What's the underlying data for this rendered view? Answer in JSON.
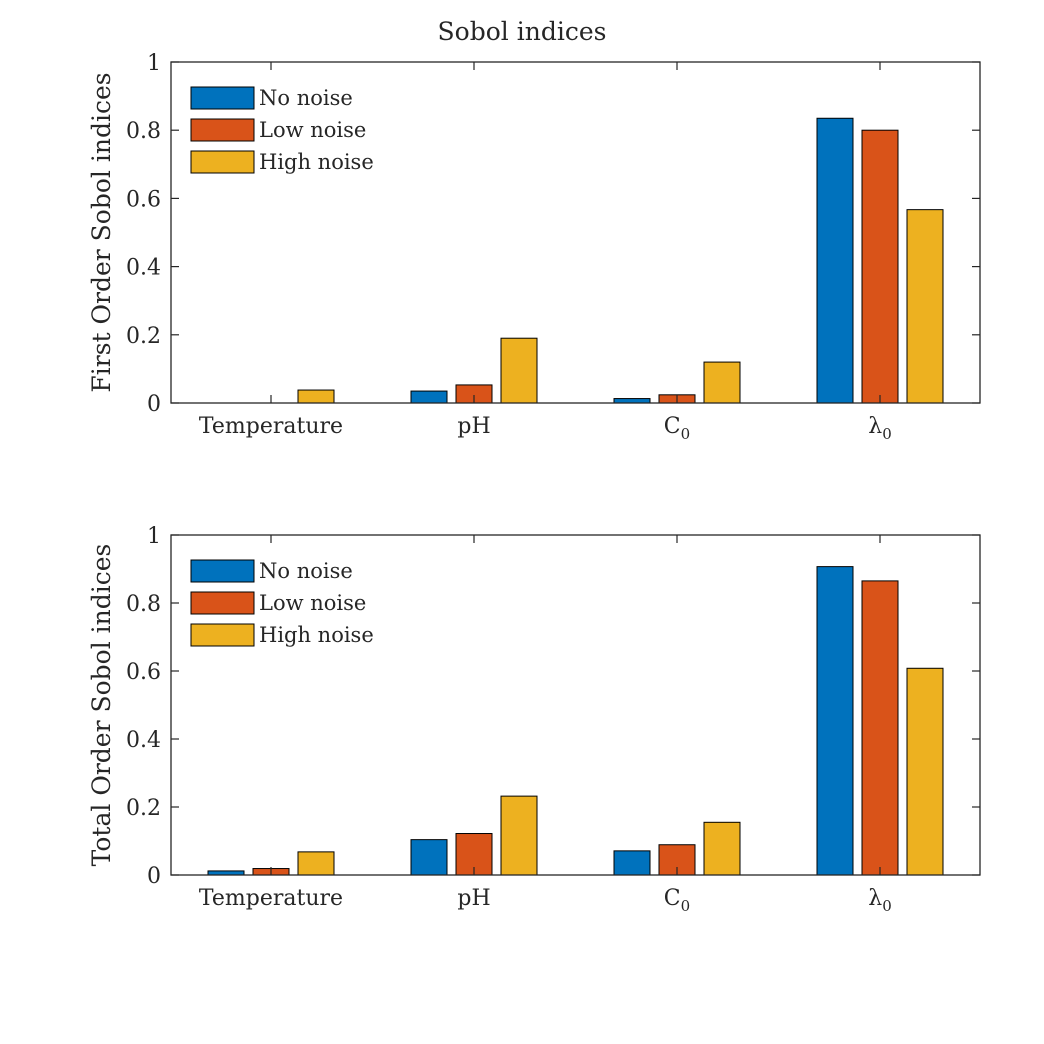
{
  "figure": {
    "title": "Sobol indices"
  },
  "chart_data": [
    {
      "type": "bar",
      "title": "",
      "xlabel": "",
      "ylabel": "First Order Sobol indices",
      "ylim": [
        0,
        1
      ],
      "yticks": [
        "0",
        "0.2",
        "0.4",
        "0.6",
        "0.8",
        "1"
      ],
      "categories": [
        "Temperature",
        "pH",
        "C0",
        "λ0"
      ],
      "series": [
        {
          "name": "No noise",
          "color": "#0072BD",
          "values": [
            0.0,
            0.035,
            0.013,
            0.835
          ]
        },
        {
          "name": "Low noise",
          "color": "#D95319",
          "values": [
            0.0,
            0.053,
            0.024,
            0.8
          ]
        },
        {
          "name": "High noise",
          "color": "#EDB120",
          "values": [
            0.038,
            0.19,
            0.12,
            0.567
          ]
        }
      ],
      "grid": false,
      "legend_position": "top-left"
    },
    {
      "type": "bar",
      "title": "",
      "xlabel": "",
      "ylabel": "Total Order Sobol indices",
      "ylim": [
        0,
        1
      ],
      "yticks": [
        "0",
        "0.2",
        "0.4",
        "0.6",
        "0.8",
        "1"
      ],
      "categories": [
        "Temperature",
        "pH",
        "C0",
        "λ0"
      ],
      "series": [
        {
          "name": "No noise",
          "color": "#0072BD",
          "values": [
            0.012,
            0.104,
            0.071,
            0.907
          ]
        },
        {
          "name": "Low noise",
          "color": "#D95319",
          "values": [
            0.019,
            0.122,
            0.089,
            0.865
          ]
        },
        {
          "name": "High noise",
          "color": "#EDB120",
          "values": [
            0.068,
            0.232,
            0.155,
            0.608
          ]
        }
      ],
      "grid": false,
      "legend_position": "top-left"
    }
  ]
}
